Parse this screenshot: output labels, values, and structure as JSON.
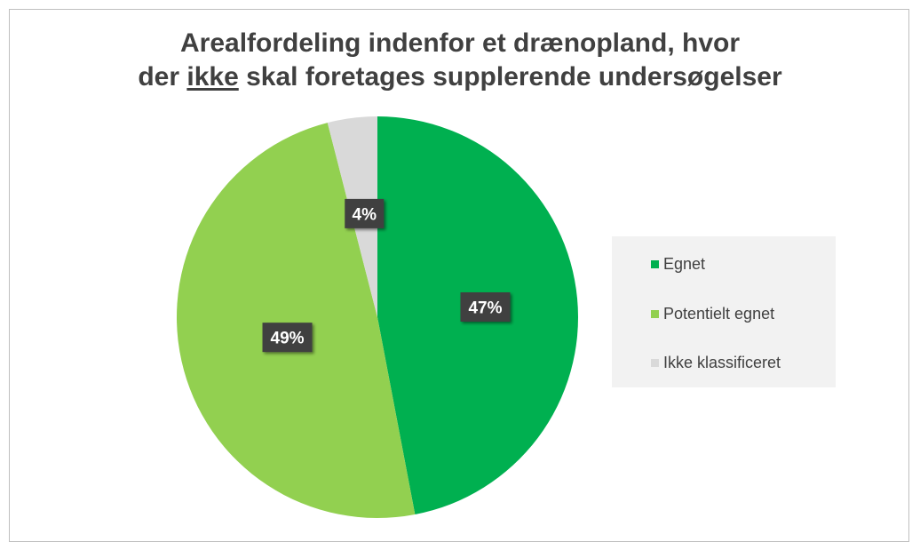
{
  "chart_data": {
    "type": "pie",
    "title_line1": "Arealfordeling indenfor et drænopland, hvor",
    "title_line2_pre": "der ",
    "title_line2_underlined": "ikke",
    "title_line2_post": " skal foretages supplerende undersøgelser",
    "slices": [
      {
        "label": "Egnet",
        "value": 47,
        "data_label": "47%",
        "color": "#00b050"
      },
      {
        "label": "Potentielt egnet",
        "value": 49,
        "data_label": "49%",
        "color": "#92d050"
      },
      {
        "label": "Ikke klassificeret",
        "value": 4,
        "data_label": "4%",
        "color": "#d9d9d9"
      }
    ],
    "start_angle_deg": 0,
    "direction": "clockwise",
    "legend_position": "right",
    "data_label_style": "white bold text on dark box"
  }
}
